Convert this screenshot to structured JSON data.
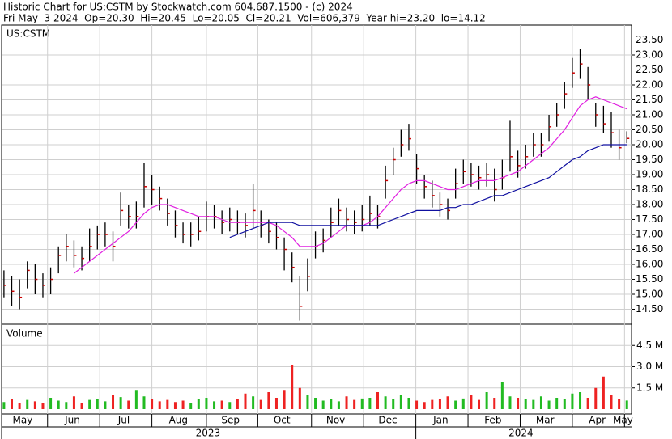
{
  "chart_data": {
    "type": "ohlc",
    "title": "Historic Chart for US:CSTM by Stockwatch.com 604.687.1500 - (c) 2024",
    "subtitle": "Fri May  3 2024  Op=20.30  Hi=20.45  Lo=20.05  Cl=20.21  Vol=606,379  Year hi=23.20  lo=14.12",
    "symbol": "US:CSTM",
    "xlim": [
      -0.3,
      80.6
    ],
    "month_labels": [
      {
        "value": 2.4,
        "label": "May"
      },
      {
        "value": 8.8,
        "label": "Jun"
      },
      {
        "value": 15.4,
        "label": "Jul"
      },
      {
        "value": 22.4,
        "label": "Aug"
      },
      {
        "value": 29.1,
        "label": "Sep"
      },
      {
        "value": 35.7,
        "label": "Oct"
      },
      {
        "value": 42.6,
        "label": "Nov"
      },
      {
        "value": 49.3,
        "label": "Dec"
      },
      {
        "value": 56.1,
        "label": "Jan"
      },
      {
        "value": 62.8,
        "label": "Feb"
      },
      {
        "value": 69.5,
        "label": "Mar"
      },
      {
        "value": 76.2,
        "label": "Apr"
      },
      {
        "value": 79.5,
        "label": "May"
      }
    ],
    "month_boundaries": [
      5.6,
      12.3,
      19.0,
      26.0,
      32.6,
      39.5,
      46.2,
      52.9,
      59.6,
      66.3,
      73.0,
      79.7
    ],
    "years": [
      {
        "value": 26.2,
        "label": "2023"
      },
      {
        "value": 66.4,
        "label": "2024"
      }
    ],
    "year_boundary": 52.9,
    "ylim": [
      14,
      24
    ],
    "yticks": [
      {
        "value": 14.5,
        "label": "14.50"
      },
      {
        "value": 15,
        "label": "15.00"
      },
      {
        "value": 15.5,
        "label": "15.50"
      },
      {
        "value": 16,
        "label": "16.00"
      },
      {
        "value": 16.5,
        "label": "16.50"
      },
      {
        "value": 17,
        "label": "17.00"
      },
      {
        "value": 17.5,
        "label": "17.50"
      },
      {
        "value": 18,
        "label": "18.00"
      },
      {
        "value": 18.5,
        "label": "18.50"
      },
      {
        "value": 19,
        "label": "19.00"
      },
      {
        "value": 19.5,
        "label": "19.50"
      },
      {
        "value": 20,
        "label": "20.00"
      },
      {
        "value": 20.5,
        "label": "20.50"
      },
      {
        "value": 21,
        "label": "21.00"
      },
      {
        "value": 21.5,
        "label": "21.50"
      },
      {
        "value": 22,
        "label": "22.00"
      },
      {
        "value": 22.5,
        "label": "22.50"
      },
      {
        "value": 23,
        "label": "23.00"
      },
      {
        "value": 23.5,
        "label": "23.50"
      }
    ],
    "grid": true,
    "bar_color": "#000000",
    "close_color": "#cc0000",
    "high": [
      15.8,
      15.6,
      15.5,
      16.1,
      16.0,
      15.7,
      15.9,
      16.6,
      17.0,
      16.8,
      16.6,
      17.2,
      17.3,
      17.4,
      17.1,
      18.4,
      18.0,
      18.1,
      19.4,
      19.0,
      18.6,
      18.2,
      17.8,
      17.4,
      17.4,
      17.6,
      18.1,
      18.0,
      17.8,
      17.9,
      17.8,
      17.7,
      18.7,
      17.8,
      17.5,
      17.4,
      16.9,
      16.4,
      15.6,
      16.2,
      17.1,
      17.2,
      17.9,
      18.2,
      17.9,
      17.8,
      18.0,
      18.3,
      18.0,
      19.3,
      19.9,
      20.5,
      20.7,
      19.7,
      19.0,
      18.8,
      18.4,
      18.2,
      19.2,
      19.5,
      19.4,
      19.3,
      19.4,
      19.2,
      19.5,
      20.8,
      19.8,
      20.0,
      20.4,
      20.4,
      21.0,
      21.4,
      22.1,
      22.9,
      23.2,
      22.6,
      21.4,
      21.3,
      21.1,
      20.5,
      20.45
    ],
    "low": [
      14.9,
      14.6,
      14.5,
      15.2,
      15.0,
      14.9,
      15.0,
      15.7,
      16.1,
      15.9,
      15.8,
      16.1,
      16.5,
      16.6,
      16.1,
      17.3,
      17.2,
      17.2,
      17.9,
      18.0,
      17.8,
      17.3,
      16.9,
      16.7,
      16.6,
      16.8,
      17.1,
      17.2,
      17.0,
      17.1,
      17.0,
      16.9,
      17.2,
      16.9,
      16.7,
      16.5,
      15.8,
      15.4,
      14.12,
      15.1,
      16.2,
      16.4,
      16.9,
      17.3,
      17.1,
      17.0,
      17.1,
      17.3,
      17.2,
      18.2,
      19.0,
      19.6,
      19.8,
      18.7,
      18.2,
      17.9,
      17.6,
      17.5,
      18.2,
      18.7,
      18.6,
      18.5,
      18.6,
      18.1,
      18.5,
      19.1,
      18.9,
      19.2,
      19.6,
      19.6,
      20.1,
      20.6,
      21.2,
      21.9,
      22.2,
      21.5,
      20.6,
      20.4,
      19.9,
      19.5,
      20.05
    ],
    "close": [
      15.3,
      15.1,
      14.9,
      15.8,
      15.5,
      15.3,
      15.5,
      16.3,
      16.6,
      16.3,
      16.2,
      16.6,
      17.0,
      17.0,
      16.6,
      17.8,
      17.6,
      17.6,
      18.6,
      18.5,
      18.2,
      17.7,
      17.3,
      17.0,
      17.0,
      17.1,
      17.6,
      17.6,
      17.4,
      17.5,
      17.4,
      17.3,
      17.8,
      17.3,
      17.1,
      16.9,
      16.5,
      15.9,
      14.6,
      15.6,
      16.6,
      16.8,
      17.4,
      17.8,
      17.5,
      17.4,
      17.5,
      17.7,
      17.6,
      18.8,
      19.5,
      20.0,
      20.2,
      19.2,
      18.6,
      18.3,
      18.0,
      17.8,
      18.7,
      19.1,
      19.0,
      18.9,
      19.0,
      18.5,
      18.9,
      19.6,
      19.3,
      19.6,
      20.0,
      20.0,
      20.6,
      21.0,
      21.7,
      22.4,
      22.7,
      22.0,
      21.0,
      20.7,
      20.4,
      19.9,
      20.21
    ],
    "ma_lines": [
      {
        "color": "#e020e0",
        "values": [
          null,
          null,
          null,
          null,
          null,
          null,
          null,
          null,
          null,
          15.7,
          15.9,
          16.1,
          16.3,
          16.5,
          16.7,
          16.9,
          17.1,
          17.4,
          17.7,
          17.9,
          18.0,
          18.0,
          17.9,
          17.8,
          17.7,
          17.6,
          17.6,
          17.6,
          17.5,
          17.4,
          17.4,
          17.4,
          17.4,
          17.4,
          17.4,
          17.3,
          17.1,
          16.9,
          16.6,
          16.6,
          16.6,
          16.7,
          16.9,
          17.1,
          17.3,
          17.3,
          17.3,
          17.4,
          17.6,
          17.9,
          18.2,
          18.5,
          18.7,
          18.8,
          18.8,
          18.7,
          18.6,
          18.5,
          18.5,
          18.6,
          18.7,
          18.8,
          18.8,
          18.8,
          18.9,
          19.0,
          19.1,
          19.3,
          19.5,
          19.7,
          19.9,
          20.2,
          20.5,
          20.9,
          21.3,
          21.5,
          21.6,
          21.5,
          21.4,
          21.3,
          21.2
        ]
      },
      {
        "color": "#1010a0",
        "values": [
          null,
          null,
          null,
          null,
          null,
          null,
          null,
          null,
          null,
          null,
          null,
          null,
          null,
          null,
          null,
          null,
          null,
          null,
          null,
          null,
          null,
          null,
          null,
          null,
          null,
          null,
          null,
          null,
          null,
          16.9,
          17.0,
          17.1,
          17.2,
          17.3,
          17.4,
          17.4,
          17.4,
          17.4,
          17.3,
          17.3,
          17.3,
          17.3,
          17.3,
          17.3,
          17.3,
          17.3,
          17.3,
          17.3,
          17.3,
          17.4,
          17.5,
          17.6,
          17.7,
          17.8,
          17.8,
          17.8,
          17.8,
          17.9,
          17.9,
          18.0,
          18.0,
          18.1,
          18.2,
          18.3,
          18.3,
          18.4,
          18.5,
          18.6,
          18.7,
          18.8,
          18.9,
          19.1,
          19.3,
          19.5,
          19.6,
          19.8,
          19.9,
          20.0,
          20.0,
          20.0,
          20.0
        ]
      }
    ],
    "volume": {
      "label": "Volume",
      "up_color": "#22bb22",
      "down_color": "#ee2222",
      "ylim": [
        0,
        6000000
      ],
      "yticks": [
        {
          "value": 1500000,
          "label": "1.5 M"
        },
        {
          "value": 3000000,
          "label": "3.0 M"
        },
        {
          "value": 4500000,
          "label": "4.5 M"
        }
      ],
      "values": [
        500000,
        700000,
        400000,
        650000,
        550000,
        450000,
        800000,
        600000,
        500000,
        900000,
        450000,
        650000,
        700000,
        550000,
        1000000,
        850000,
        600000,
        1300000,
        900000,
        700000,
        550000,
        650000,
        500000,
        600000,
        450000,
        700000,
        800000,
        550000,
        600000,
        500000,
        700000,
        1100000,
        900000,
        650000,
        1200000,
        800000,
        1300000,
        3100000,
        1500000,
        1000000,
        800000,
        600000,
        700000,
        550000,
        900000,
        650000,
        750000,
        800000,
        1200000,
        900000,
        700000,
        1000000,
        800000,
        600000,
        500000,
        650000,
        700000,
        900000,
        600000,
        750000,
        1000000,
        650000,
        1200000,
        800000,
        1900000,
        900000,
        800000,
        700000,
        650000,
        900000,
        600000,
        800000,
        700000,
        1100000,
        1200000,
        800000,
        1500000,
        2300000,
        1000000,
        700000,
        606379
      ]
    }
  }
}
